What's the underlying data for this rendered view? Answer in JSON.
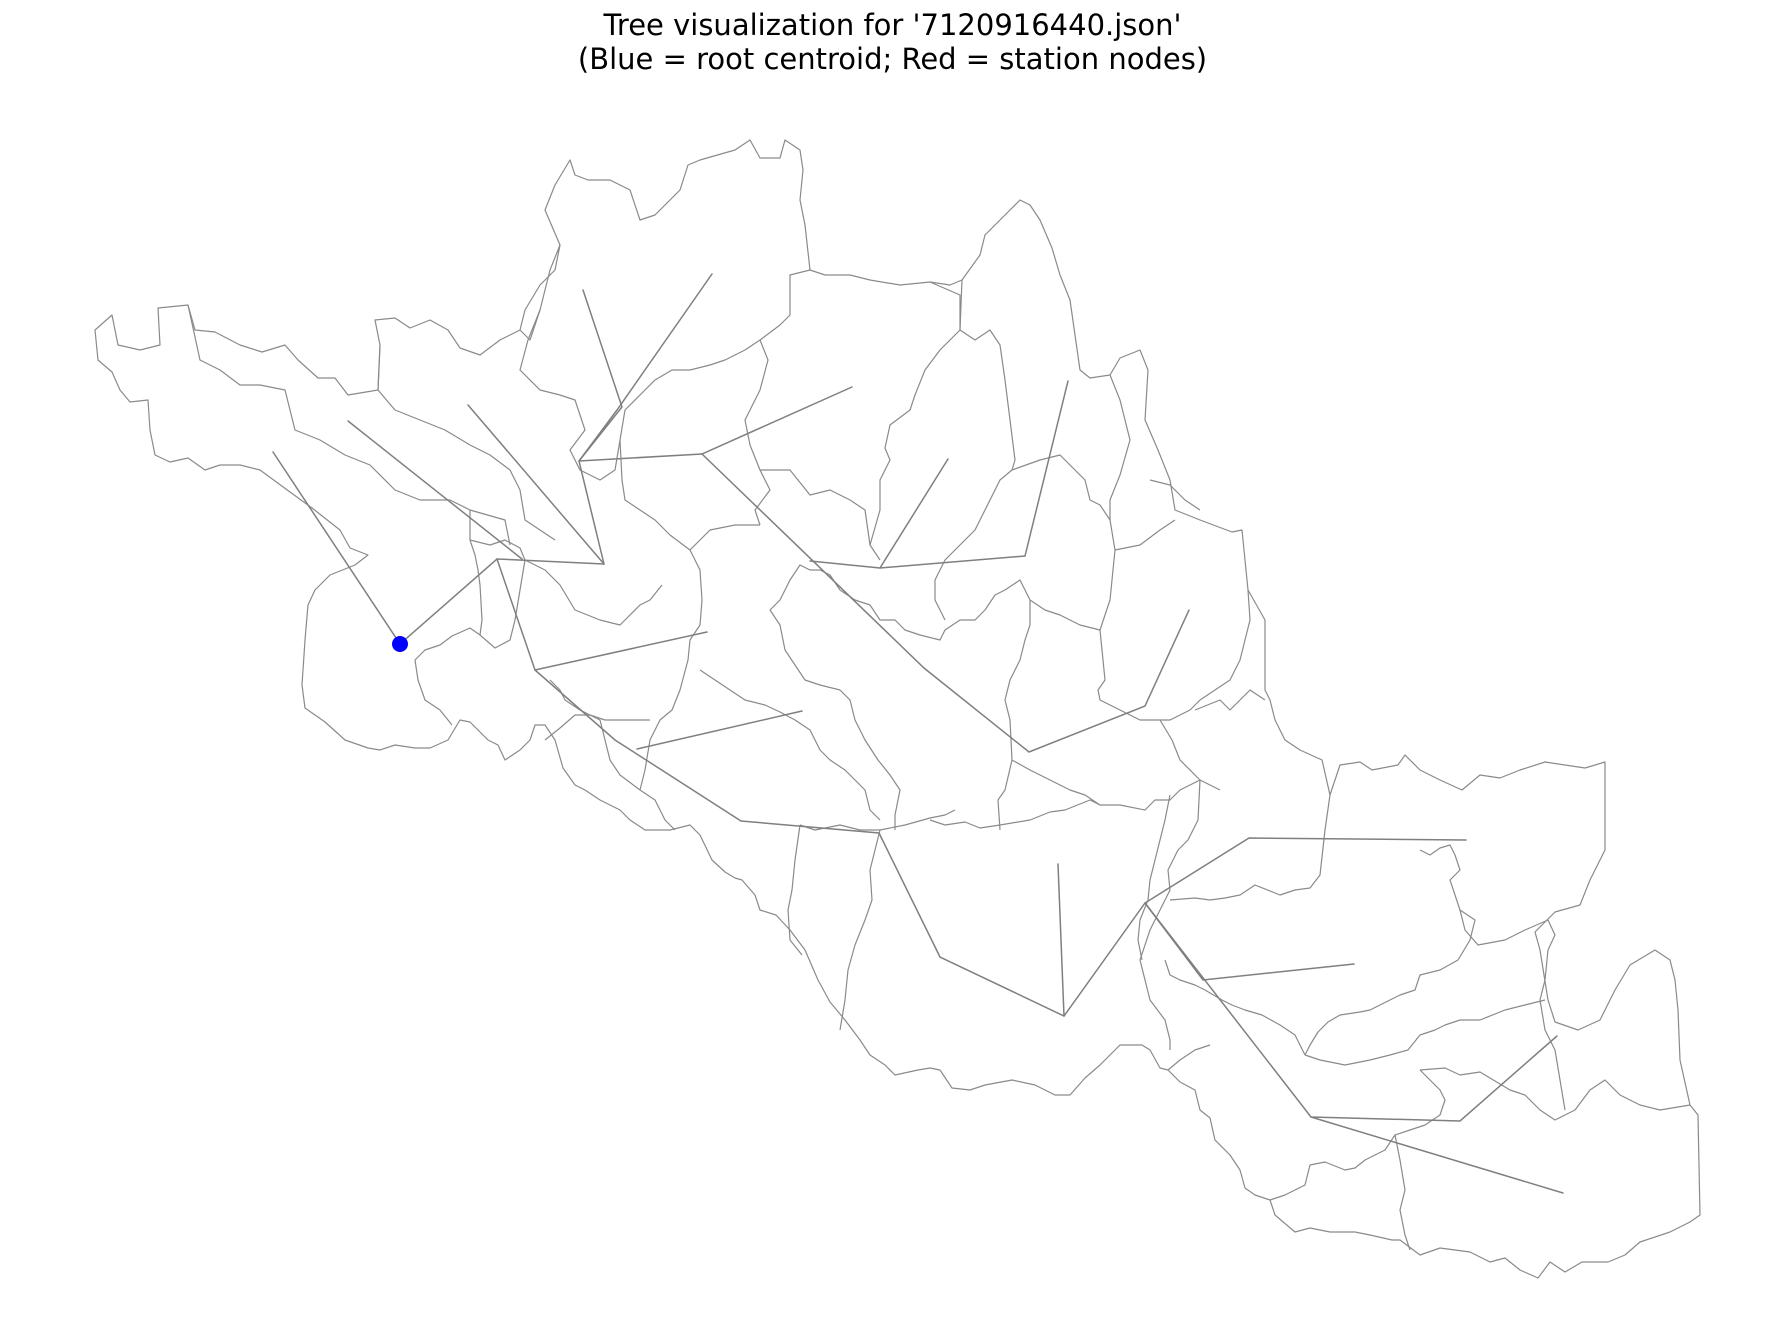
{
  "title": {
    "line1": "Tree visualization for '7120916440.json'",
    "line2": "(Blue = root centroid; Red = station nodes)"
  },
  "colors": {
    "background": "#ffffff",
    "boundary": "#8a8a8a",
    "edge": "#7f7f7f",
    "root": "#0000ff",
    "station": "#ff0000"
  },
  "legend_semantics": {
    "root_centroid": "Blue",
    "station_nodes": "Red"
  }
}
